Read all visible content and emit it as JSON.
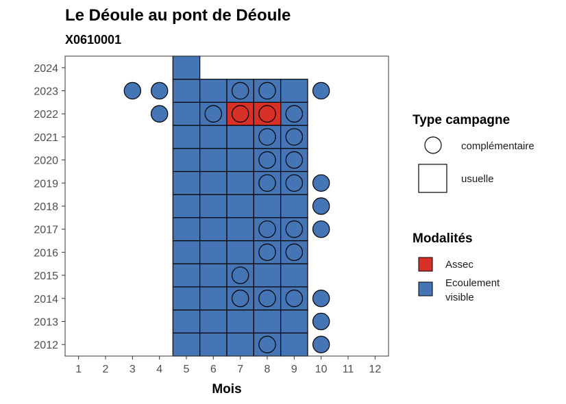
{
  "chart_data": {
    "type": "heatmap",
    "title": "Le Déoule au pont de Déoule",
    "subtitle": "X0610001",
    "xlabel": "Mois",
    "ylabel": "",
    "x_ticks": [
      1,
      2,
      3,
      4,
      5,
      6,
      7,
      8,
      9,
      10,
      11,
      12
    ],
    "y_ticks": [
      2012,
      2013,
      2014,
      2015,
      2016,
      2017,
      2018,
      2019,
      2020,
      2021,
      2022,
      2023,
      2024
    ],
    "xlim": [
      0.5,
      12.5
    ],
    "ylim": [
      2011.5,
      2024.5
    ],
    "colors": {
      "Assec": "#d73027",
      "Ecoulement visible": "#4575b4"
    },
    "legend_type": {
      "title": "Type campagne",
      "items": [
        {
          "label": "complémentaire",
          "shape": "circle"
        },
        {
          "label": "usuelle",
          "shape": "square"
        }
      ]
    },
    "legend_modalites": {
      "title": "Modalités",
      "items": [
        {
          "label": "Assec",
          "color": "#d73027"
        },
        {
          "label": "Ecoulement visible",
          "lines": [
            "Ecoulement",
            "visible"
          ],
          "color": "#4575b4"
        }
      ]
    },
    "usuelle": [
      {
        "year": 2012,
        "months": [
          5,
          6,
          7,
          8,
          9
        ],
        "modalite": "Ecoulement visible"
      },
      {
        "year": 2013,
        "months": [
          5,
          6,
          7,
          8,
          9
        ],
        "modalite": "Ecoulement visible"
      },
      {
        "year": 2014,
        "months": [
          5,
          6,
          7,
          8,
          9
        ],
        "modalite": "Ecoulement visible"
      },
      {
        "year": 2015,
        "months": [
          5,
          6,
          7,
          8,
          9
        ],
        "modalite": "Ecoulement visible"
      },
      {
        "year": 2016,
        "months": [
          5,
          6,
          7,
          8,
          9
        ],
        "modalite": "Ecoulement visible"
      },
      {
        "year": 2017,
        "months": [
          5,
          6,
          7,
          8,
          9
        ],
        "modalite": "Ecoulement visible"
      },
      {
        "year": 2018,
        "months": [
          5,
          6,
          7,
          8,
          9
        ],
        "modalite": "Ecoulement visible"
      },
      {
        "year": 2019,
        "months": [
          5,
          6,
          7,
          8,
          9
        ],
        "modalite": "Ecoulement visible"
      },
      {
        "year": 2020,
        "months": [
          5,
          6,
          7,
          8,
          9
        ],
        "modalite": "Ecoulement visible"
      },
      {
        "year": 2021,
        "months": [
          5,
          6,
          7,
          8,
          9
        ],
        "modalite": "Ecoulement visible"
      },
      {
        "year": 2022,
        "months": [
          5,
          6,
          9
        ],
        "modalite": "Ecoulement visible"
      },
      {
        "year": 2022,
        "months": [
          7,
          8
        ],
        "modalite": "Assec"
      },
      {
        "year": 2023,
        "months": [
          5,
          6,
          7,
          8,
          9
        ],
        "modalite": "Ecoulement visible"
      },
      {
        "year": 2024,
        "months": [
          5
        ],
        "modalite": "Ecoulement visible"
      }
    ],
    "complementaire": [
      {
        "year": 2012,
        "months": [
          8,
          10
        ],
        "modalite": "Ecoulement visible"
      },
      {
        "year": 2013,
        "months": [
          10
        ],
        "modalite": "Ecoulement visible"
      },
      {
        "year": 2014,
        "months": [
          7,
          8,
          9,
          10
        ],
        "modalite": "Ecoulement visible"
      },
      {
        "year": 2015,
        "months": [
          7
        ],
        "modalite": "Ecoulement visible"
      },
      {
        "year": 2016,
        "months": [
          8,
          9
        ],
        "modalite": "Ecoulement visible"
      },
      {
        "year": 2017,
        "months": [
          8,
          9,
          10
        ],
        "modalite": "Ecoulement visible"
      },
      {
        "year": 2018,
        "months": [
          10
        ],
        "modalite": "Ecoulement visible"
      },
      {
        "year": 2019,
        "months": [
          8,
          9,
          10
        ],
        "modalite": "Ecoulement visible"
      },
      {
        "year": 2020,
        "months": [
          8,
          9
        ],
        "modalite": "Ecoulement visible"
      },
      {
        "year": 2021,
        "months": [
          8,
          9
        ],
        "modalite": "Ecoulement visible"
      },
      {
        "year": 2022,
        "months": [
          4,
          6,
          9
        ],
        "modalite": "Ecoulement visible"
      },
      {
        "year": 2022,
        "months": [
          7,
          8
        ],
        "modalite": "Assec"
      },
      {
        "year": 2023,
        "months": [
          3,
          4,
          7,
          8,
          10
        ],
        "modalite": "Ecoulement visible"
      }
    ]
  }
}
